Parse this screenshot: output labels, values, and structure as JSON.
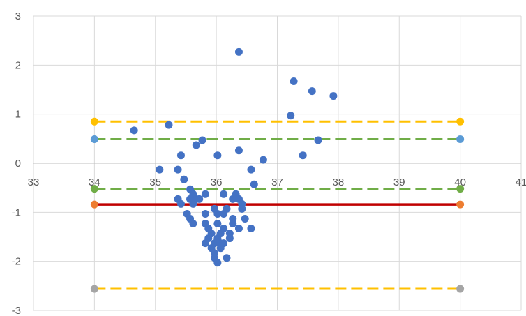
{
  "chart_data": {
    "type": "scatter",
    "title": "",
    "xlabel": "",
    "ylabel": "",
    "xlim": [
      33,
      41
    ],
    "ylim": [
      -3,
      3
    ],
    "x_ticks": [
      33,
      34,
      35,
      36,
      37,
      38,
      39,
      40,
      41
    ],
    "y_ticks": [
      -3,
      -2,
      -1,
      0,
      1,
      2,
      3
    ],
    "grid": true,
    "legend": "none",
    "colors": {
      "points": "#4472C4",
      "mean_line": "#C00000",
      "loa_lines": "#FFC000",
      "inner_lines": "#70AD47",
      "grid": "#D9D9D9",
      "axis": "#BFBFBF",
      "tick_text": "#595959"
    },
    "series": [
      {
        "values": [
          [
            34.65,
            0.67
          ],
          [
            35.22,
            0.78
          ],
          [
            35.07,
            -0.13
          ],
          [
            35.37,
            -0.13
          ],
          [
            35.42,
            0.16
          ],
          [
            35.47,
            -0.33
          ],
          [
            35.57,
            -0.53
          ],
          [
            35.67,
            0.37
          ],
          [
            35.77,
            0.47
          ],
          [
            35.37,
            -0.73
          ],
          [
            35.42,
            -0.83
          ],
          [
            35.52,
            -1.03
          ],
          [
            35.57,
            -1.13
          ],
          [
            35.62,
            -1.23
          ],
          [
            35.57,
            -0.73
          ],
          [
            35.62,
            -0.83
          ],
          [
            35.67,
            -0.73
          ],
          [
            35.72,
            -0.73
          ],
          [
            35.62,
            -0.63
          ],
          [
            35.82,
            -0.63
          ],
          [
            35.82,
            -1.03
          ],
          [
            35.82,
            -1.23
          ],
          [
            35.87,
            -1.33
          ],
          [
            35.82,
            -1.63
          ],
          [
            35.87,
            -1.53
          ],
          [
            35.92,
            -1.73
          ],
          [
            35.97,
            -1.83
          ],
          [
            35.97,
            -1.93
          ],
          [
            36.02,
            -2.03
          ],
          [
            35.92,
            -1.43
          ],
          [
            35.97,
            -1.63
          ],
          [
            36.02,
            -1.53
          ],
          [
            36.02,
            -1.23
          ],
          [
            35.97,
            -0.93
          ],
          [
            36.02,
            -1.03
          ],
          [
            36.07,
            -1.43
          ],
          [
            36.07,
            -1.63
          ],
          [
            36.07,
            -1.73
          ],
          [
            36.12,
            -1.63
          ],
          [
            36.12,
            -1.33
          ],
          [
            36.12,
            -1.03
          ],
          [
            36.17,
            -0.93
          ],
          [
            36.12,
            -0.63
          ],
          [
            36.22,
            -1.53
          ],
          [
            36.22,
            -1.43
          ],
          [
            36.27,
            -1.23
          ],
          [
            36.27,
            -1.13
          ],
          [
            36.17,
            -1.93
          ],
          [
            36.27,
            -0.73
          ],
          [
            36.32,
            -0.63
          ],
          [
            36.37,
            -0.73
          ],
          [
            36.42,
            -0.83
          ],
          [
            36.42,
            -0.93
          ],
          [
            36.47,
            -1.13
          ],
          [
            36.37,
            -1.33
          ],
          [
            36.57,
            -1.33
          ],
          [
            36.02,
            0.16
          ],
          [
            36.37,
            0.26
          ],
          [
            36.37,
            2.27
          ],
          [
            36.57,
            -0.13
          ],
          [
            36.62,
            -0.43
          ],
          [
            36.77,
            0.07
          ],
          [
            37.22,
            0.97
          ],
          [
            37.27,
            1.67
          ],
          [
            37.42,
            0.16
          ],
          [
            37.57,
            1.47
          ],
          [
            37.67,
            0.47
          ],
          [
            37.92,
            1.37
          ]
        ]
      },
      {
        "type": "line",
        "style": "solid",
        "color": "#C00000",
        "y": -0.84,
        "x_range": [
          34,
          40
        ],
        "end_markers": "#ED7D31"
      },
      {
        "type": "line",
        "style": "dashed",
        "color": "#FFC000",
        "y": 0.85,
        "x_range": [
          34,
          40
        ],
        "end_markers": "#FFC000"
      },
      {
        "type": "line",
        "style": "dashed",
        "color": "#FFC000",
        "y": -2.56,
        "x_range": [
          34,
          40
        ],
        "end_markers": "#A5A5A5"
      },
      {
        "type": "line",
        "style": "dashed",
        "color": "#70AD47",
        "y": 0.49,
        "x_range": [
          34,
          40
        ],
        "end_markers": "#5B9BD5"
      },
      {
        "type": "line",
        "style": "dashed",
        "color": "#70AD47",
        "y": -0.52,
        "x_range": [
          34,
          40
        ],
        "end_markers": "#70AD47"
      }
    ]
  }
}
